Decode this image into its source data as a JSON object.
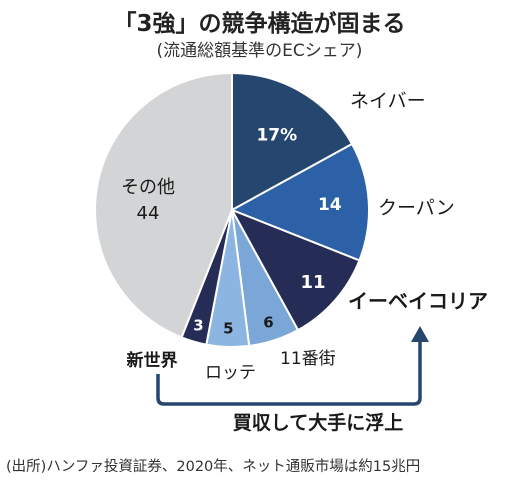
{
  "title": "「3強」の競争構造が固まる",
  "subtitle": "(流通総額基準のECシェア)",
  "chart_data": {
    "type": "pie",
    "title": "「3強」の競争構造が固まる",
    "subtitle": "(流通総額基準のECシェア)",
    "slices": [
      {
        "name": "ネイバー",
        "value": 17,
        "value_label": "17%",
        "color": "#25466f"
      },
      {
        "name": "クーパン",
        "value": 14,
        "value_label": "14",
        "color": "#2c61a8"
      },
      {
        "name": "イーベイコリア",
        "value": 11,
        "value_label": "11",
        "color": "#252c55"
      },
      {
        "name": "11番街",
        "value": 6,
        "value_label": "6",
        "color": "#7ba7d8"
      },
      {
        "name": "ロッテ",
        "value": 5,
        "value_label": "5",
        "color": "#8db5e2"
      },
      {
        "name": "新世界",
        "value": 3,
        "value_label": "3",
        "color": "#252c55"
      },
      {
        "name": "その他",
        "value": 44,
        "value_label": "44",
        "color": "#d3d4d6"
      }
    ],
    "annotation": "買収して大手に浮上",
    "arrow_color": "#25466f"
  },
  "source": "(出所)ハンファ投資証券、2020年、ネット通販市場は約15兆円"
}
